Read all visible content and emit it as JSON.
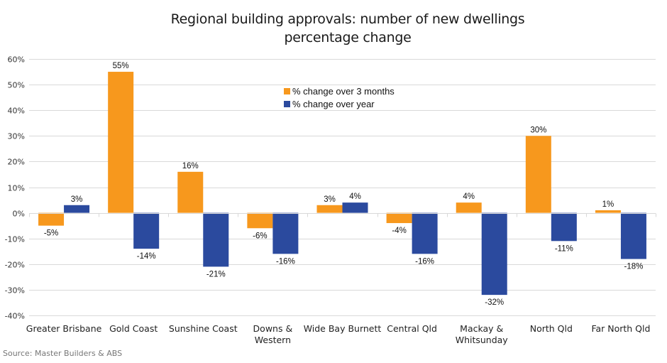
{
  "chart_data": {
    "type": "bar",
    "title": "Regional building approvals: number of new dwellings",
    "subtitle": "percentage change",
    "xlabel": "",
    "ylabel": "",
    "categories": [
      [
        "Greater Brisbane"
      ],
      [
        "Gold Coast"
      ],
      [
        "Sunshine Coast"
      ],
      [
        "Downs &",
        "Western"
      ],
      [
        "Wide Bay Burnett"
      ],
      [
        "Central Qld"
      ],
      [
        "Mackay &",
        "Whitsunday"
      ],
      [
        "North Qld"
      ],
      [
        "Far North Qld"
      ]
    ],
    "series": [
      {
        "name": "% change over 3 months",
        "color": "#F7981D",
        "values": [
          -5,
          55,
          16,
          -6,
          3,
          -4,
          4,
          30,
          1
        ]
      },
      {
        "name": "% change over year",
        "color": "#2B4A9E",
        "values": [
          3,
          -14,
          -21,
          -16,
          4,
          -16,
          -32,
          -11,
          -18
        ]
      }
    ],
    "ylim": [
      -40,
      60
    ],
    "yticks": [
      60,
      50,
      40,
      30,
      20,
      10,
      0,
      -10,
      -20,
      -30,
      -40
    ],
    "ytick_format": "%",
    "grid": true,
    "legend": "top-center",
    "data_labels": true,
    "source": "Source: Master Builders & ABS"
  }
}
